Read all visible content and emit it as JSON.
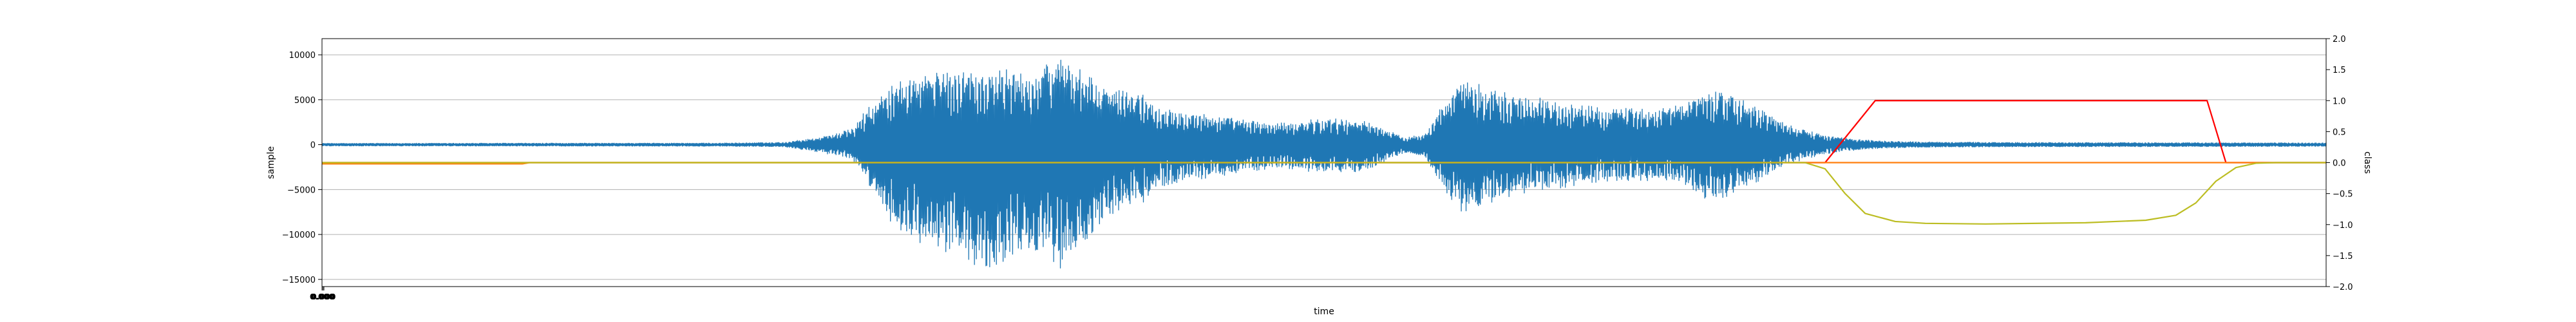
{
  "chart_data": {
    "type": "line",
    "title": "",
    "xlabel": "time",
    "ylabel_left": "sample",
    "ylabel_right": "class",
    "x_tick_label": "0.000",
    "grid": true,
    "x_range": [
      0,
      1
    ],
    "y_left": {
      "range": [
        -15800,
        11800
      ],
      "ticks": [
        10000,
        5000,
        0,
        -5000,
        -10000,
        -15000
      ],
      "tick_labels": [
        "10000",
        "5000",
        "0",
        "−5000",
        "−10000",
        "−15000"
      ]
    },
    "y_right": {
      "range": [
        -2.0,
        2.0
      ],
      "ticks": [
        2.0,
        1.5,
        1.0,
        0.5,
        0.0,
        -0.5,
        -1.0,
        -1.5,
        -2.0
      ],
      "tick_labels": [
        "2.0",
        "1.5",
        "1.0",
        "0.5",
        "0.0",
        "−0.5",
        "−1.0",
        "−1.5",
        "−2.0"
      ]
    },
    "series": [
      {
        "axis": "left",
        "kind": "waveform",
        "color": "#1f77b4",
        "envelope": [
          [
            0.0,
            150
          ],
          [
            0.2,
            180
          ],
          [
            0.23,
            250
          ],
          [
            0.25,
            900
          ],
          [
            0.265,
            1800
          ],
          [
            0.27,
            3500
          ],
          [
            0.28,
            5800
          ],
          [
            0.29,
            7500
          ],
          [
            0.3,
            8200
          ],
          [
            0.31,
            8000
          ],
          [
            0.32,
            8500
          ],
          [
            0.33,
            8600
          ],
          [
            0.34,
            8600
          ],
          [
            0.35,
            7800
          ],
          [
            0.36,
            8800
          ],
          [
            0.37,
            10300
          ],
          [
            0.38,
            8000
          ],
          [
            0.39,
            6500
          ],
          [
            0.4,
            6200
          ],
          [
            0.41,
            5600
          ],
          [
            0.42,
            4200
          ],
          [
            0.44,
            3500
          ],
          [
            0.46,
            2800
          ],
          [
            0.48,
            2400
          ],
          [
            0.5,
            3000
          ],
          [
            0.52,
            2700
          ],
          [
            0.53,
            1800
          ],
          [
            0.54,
            800
          ],
          [
            0.55,
            1200
          ],
          [
            0.56,
            4800
          ],
          [
            0.57,
            7300
          ],
          [
            0.58,
            6500
          ],
          [
            0.6,
            5500
          ],
          [
            0.62,
            4800
          ],
          [
            0.64,
            4200
          ],
          [
            0.66,
            4000
          ],
          [
            0.68,
            4600
          ],
          [
            0.69,
            6200
          ],
          [
            0.7,
            6200
          ],
          [
            0.71,
            4800
          ],
          [
            0.72,
            3900
          ],
          [
            0.73,
            2400
          ],
          [
            0.74,
            1600
          ],
          [
            0.75,
            1100
          ],
          [
            0.76,
            700
          ],
          [
            0.78,
            400
          ],
          [
            0.8,
            300
          ],
          [
            0.85,
            250
          ],
          [
            1.0,
            200
          ]
        ],
        "neg_factor": [
          [
            0.0,
            1.0
          ],
          [
            0.27,
            1.0
          ],
          [
            0.28,
            1.3
          ],
          [
            0.3,
            1.45
          ],
          [
            0.32,
            1.55
          ],
          [
            0.34,
            1.6
          ],
          [
            0.36,
            1.35
          ],
          [
            0.38,
            1.4
          ],
          [
            0.4,
            1.2
          ],
          [
            0.42,
            1.1
          ],
          [
            0.56,
            1.1
          ],
          [
            0.6,
            1.0
          ],
          [
            0.7,
            1.0
          ],
          [
            1.0,
            1.0
          ]
        ]
      },
      {
        "axis": "right",
        "kind": "line",
        "color": "#ff0000",
        "points": [
          [
            0.0,
            0.0
          ],
          [
            0.75,
            0.0
          ],
          [
            0.775,
            1.0
          ],
          [
            0.9406,
            1.0
          ],
          [
            0.95,
            0.0
          ],
          [
            1.0,
            0.0
          ]
        ]
      },
      {
        "axis": "right",
        "kind": "line",
        "color": "#ff7f0e",
        "points": [
          [
            0.0,
            -0.02
          ],
          [
            0.1,
            -0.02
          ],
          [
            0.1036,
            0.0
          ],
          [
            1.0,
            0.0
          ]
        ]
      },
      {
        "axis": "right",
        "kind": "line",
        "color": "#bcbd22",
        "points": [
          [
            0.0,
            0.0
          ],
          [
            0.74,
            0.0
          ],
          [
            0.75,
            -0.1
          ],
          [
            0.76,
            -0.5
          ],
          [
            0.77,
            -0.82
          ],
          [
            0.785,
            -0.95
          ],
          [
            0.8,
            -0.98
          ],
          [
            0.83,
            -0.99
          ],
          [
            0.88,
            -0.97
          ],
          [
            0.91,
            -0.93
          ],
          [
            0.925,
            -0.85
          ],
          [
            0.935,
            -0.65
          ],
          [
            0.945,
            -0.3
          ],
          [
            0.955,
            -0.08
          ],
          [
            0.965,
            -0.01
          ],
          [
            0.975,
            0.0
          ],
          [
            1.0,
            0.0
          ]
        ]
      }
    ]
  }
}
